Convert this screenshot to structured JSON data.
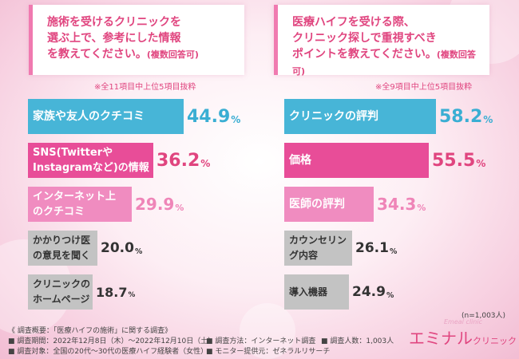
{
  "chart_data": [
    {
      "type": "bar",
      "title": "施術を受けるクリニックを\n選ぶ上で、参考にした情報\nを教えてください。",
      "title_note": "(複数回答可)",
      "note": "※全11項目中上位5項目抜粋",
      "categories": [
        "家族や友人のクチコミ",
        "SNS(Twitterや\nInstagramなど)の情報",
        "インターネット上\nのクチコミ",
        "かかりつけ医\nの意見を聞く",
        "クリニックの\nホームページ"
      ],
      "values": [
        44.9,
        36.2,
        29.9,
        20.0,
        18.7
      ],
      "value_labels": [
        "44.9",
        "36.2",
        "29.9",
        "20.0",
        "18.7"
      ],
      "unit": "%",
      "colors": [
        "#47b5d7",
        "#e84d98",
        "#f08cc0",
        "#c3c3c3",
        "#c3c3c3"
      ]
    },
    {
      "type": "bar",
      "title": "医療ハイフを受ける際、\nクリニック探しで重視すべき\nポイントを教えてください。",
      "title_note": "(複数回答可)",
      "note": "※全9項目中上位5項目抜粋",
      "categories": [
        "クリニックの評判",
        "価格",
        "医師の評判",
        "カウンセリング内容",
        "導入機器"
      ],
      "values": [
        58.2,
        55.5,
        34.3,
        26.1,
        24.9
      ],
      "value_labels": [
        "58.2",
        "55.5",
        "34.3",
        "26.1",
        "24.9"
      ],
      "unit": "%",
      "colors": [
        "#47b5d7",
        "#e84d98",
        "#f08cc0",
        "#c3c3c3",
        "#c3c3c3"
      ],
      "sample": "(n=1,003人)"
    }
  ],
  "footer": {
    "summary": "《 調査概要：「医療ハイフの施術」に関する調査》",
    "period": "■ 調査期間：2022年12月8日（木）〜2022年12月10日（土）",
    "target": "■ 調査対象：全国の20代〜30代の医療ハイフ経験者（女性）",
    "method": "■ 調査方法：インターネット調査",
    "count": "■ 調査人数：1,003人",
    "provider": "■ モニター提供元：ゼネラルリサーチ"
  },
  "logo": {
    "main": "エミナル",
    "sub": "クリニック",
    "tag": "Emeal clinic"
  }
}
